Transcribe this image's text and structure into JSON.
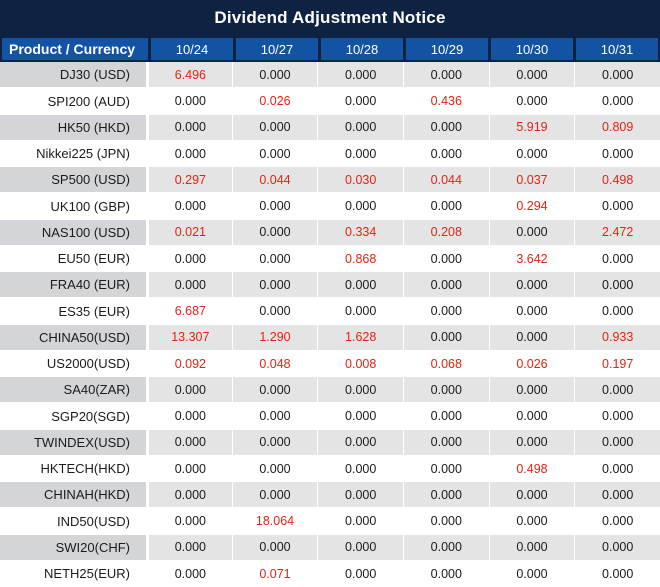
{
  "title": "Dividend Adjustment Notice",
  "colors": {
    "navy": "#0e2342",
    "header_blue": "#1253a4",
    "product_stripe_gray": "#d3d5d9",
    "value_stripe_gray": "#e4e4e4",
    "red_value": "#e42313",
    "text_black": "#1b1b1b"
  },
  "table": {
    "product_header": "Product / Currency",
    "date_headers": [
      "10/24",
      "10/27",
      "10/28",
      "10/29",
      "10/30",
      "10/31"
    ],
    "rows": [
      {
        "product": "DJ30 (USD)",
        "values": [
          "6.496",
          "0.000",
          "0.000",
          "0.000",
          "0.000",
          "0.000"
        ],
        "red": [
          1,
          0,
          0,
          0,
          0,
          0
        ]
      },
      {
        "product": "SPI200 (AUD)",
        "values": [
          "0.000",
          "0.026",
          "0.000",
          "0.436",
          "0.000",
          "0.000"
        ],
        "red": [
          0,
          1,
          0,
          1,
          0,
          0
        ]
      },
      {
        "product": "HK50 (HKD)",
        "values": [
          "0.000",
          "0.000",
          "0.000",
          "0.000",
          "5.919",
          "0.809"
        ],
        "red": [
          0,
          0,
          0,
          0,
          1,
          1
        ]
      },
      {
        "product": "Nikkei225 (JPN)",
        "values": [
          "0.000",
          "0.000",
          "0.000",
          "0.000",
          "0.000",
          "0.000"
        ],
        "red": [
          0,
          0,
          0,
          0,
          0,
          0
        ]
      },
      {
        "product": "SP500 (USD)",
        "values": [
          "0.297",
          "0.044",
          "0.030",
          "0.044",
          "0.037",
          "0.498"
        ],
        "red": [
          1,
          1,
          1,
          1,
          1,
          1
        ]
      },
      {
        "product": "UK100 (GBP)",
        "values": [
          "0.000",
          "0.000",
          "0.000",
          "0.000",
          "0.294",
          "0.000"
        ],
        "red": [
          0,
          0,
          0,
          0,
          1,
          0
        ]
      },
      {
        "product": "NAS100 (USD)",
        "values": [
          "0.021",
          "0.000",
          "0.334",
          "0.208",
          "0.000",
          "2.472"
        ],
        "red": [
          1,
          0,
          1,
          1,
          0,
          1
        ]
      },
      {
        "product": "EU50 (EUR)",
        "values": [
          "0.000",
          "0.000",
          "0.868",
          "0.000",
          "3.642",
          "0.000"
        ],
        "red": [
          0,
          0,
          1,
          0,
          1,
          0
        ]
      },
      {
        "product": "FRA40 (EUR)",
        "values": [
          "0.000",
          "0.000",
          "0.000",
          "0.000",
          "0.000",
          "0.000"
        ],
        "red": [
          0,
          0,
          0,
          0,
          0,
          0
        ]
      },
      {
        "product": "ES35 (EUR)",
        "values": [
          "6.687",
          "0.000",
          "0.000",
          "0.000",
          "0.000",
          "0.000"
        ],
        "red": [
          1,
          0,
          0,
          0,
          0,
          0
        ]
      },
      {
        "product": "CHINA50(USD)",
        "values": [
          "13.307",
          "1.290",
          "1.628",
          "0.000",
          "0.000",
          "0.933"
        ],
        "red": [
          1,
          1,
          1,
          0,
          0,
          1
        ]
      },
      {
        "product": "US2000(USD)",
        "values": [
          "0.092",
          "0.048",
          "0.008",
          "0.068",
          "0.026",
          "0.197"
        ],
        "red": [
          1,
          1,
          1,
          1,
          1,
          1
        ]
      },
      {
        "product": "SA40(ZAR)",
        "values": [
          "0.000",
          "0.000",
          "0.000",
          "0.000",
          "0.000",
          "0.000"
        ],
        "red": [
          0,
          0,
          0,
          0,
          0,
          0
        ]
      },
      {
        "product": "SGP20(SGD)",
        "values": [
          "0.000",
          "0.000",
          "0.000",
          "0.000",
          "0.000",
          "0.000"
        ],
        "red": [
          0,
          0,
          0,
          0,
          0,
          0
        ]
      },
      {
        "product": "TWINDEX(USD)",
        "values": [
          "0.000",
          "0.000",
          "0.000",
          "0.000",
          "0.000",
          "0.000"
        ],
        "red": [
          0,
          0,
          0,
          0,
          0,
          0
        ]
      },
      {
        "product": "HKTECH(HKD)",
        "values": [
          "0.000",
          "0.000",
          "0.000",
          "0.000",
          "0.498",
          "0.000"
        ],
        "red": [
          0,
          0,
          0,
          0,
          1,
          0
        ]
      },
      {
        "product": "CHINAH(HKD)",
        "values": [
          "0.000",
          "0.000",
          "0.000",
          "0.000",
          "0.000",
          "0.000"
        ],
        "red": [
          0,
          0,
          0,
          0,
          0,
          0
        ]
      },
      {
        "product": "IND50(USD)",
        "values": [
          "0.000",
          "18.064",
          "0.000",
          "0.000",
          "0.000",
          "0.000"
        ],
        "red": [
          0,
          1,
          0,
          0,
          0,
          0
        ]
      },
      {
        "product": "SWI20(CHF)",
        "values": [
          "0.000",
          "0.000",
          "0.000",
          "0.000",
          "0.000",
          "0.000"
        ],
        "red": [
          0,
          0,
          0,
          0,
          0,
          0
        ]
      },
      {
        "product": "NETH25(EUR)",
        "values": [
          "0.000",
          "0.071",
          "0.000",
          "0.000",
          "0.000",
          "0.000"
        ],
        "red": [
          0,
          1,
          0,
          0,
          0,
          0
        ]
      }
    ]
  }
}
